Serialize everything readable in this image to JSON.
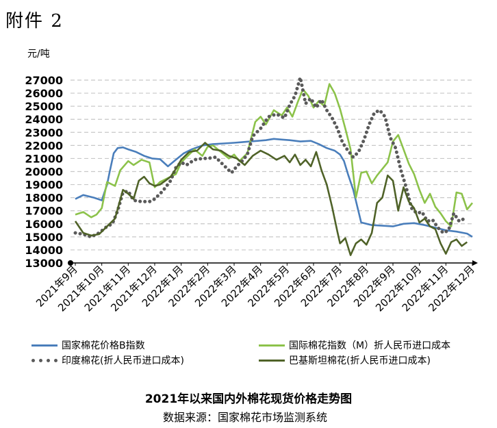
{
  "header": {
    "label": "附件 2"
  },
  "chart_data": {
    "type": "line",
    "title": "2021年以来国内外棉花现货价格走势图",
    "subtitle": "数据来源：国家棉花市场监测系统",
    "ylabel": "元/吨",
    "ylim": [
      13000,
      27000
    ],
    "yticks": [
      "13000",
      "14000",
      "15000",
      "16000",
      "17000",
      "18000",
      "19000",
      "20000",
      "21000",
      "22000",
      "23000",
      "24000",
      "25000",
      "26000",
      "27000"
    ],
    "categories": [
      "2021年9月",
      "2021年10月",
      "2021年11月",
      "2021年12月",
      "2022年1月",
      "2022年2月",
      "2022年3月",
      "2022年4月",
      "2022年5月",
      "2022年6月",
      "2022年7月",
      "2022年8月",
      "2022年9月",
      "2022年10月",
      "2022年11月",
      "2022年12月"
    ],
    "grid": "horizontal-dashed",
    "legend_position": "bottom",
    "series": [
      {
        "name": "国家棉花价格B指数",
        "color": "#4a7ebb",
        "style": "solid",
        "x": [
          0,
          0.3,
          0.7,
          1.0,
          1.2,
          1.3,
          1.45,
          1.6,
          1.8,
          2.0,
          2.3,
          2.6,
          2.9,
          3.2,
          3.5,
          3.8,
          4.1,
          4.4,
          4.8,
          5.2,
          5.6,
          6.0,
          6.3,
          6.6,
          6.9,
          7.2,
          7.5,
          7.8,
          8.1,
          8.5,
          8.9,
          9.2,
          9.5,
          9.8,
          10.0,
          10.15,
          10.3,
          10.5,
          10.8,
          11.2,
          11.6,
          12.0,
          12.4,
          12.8,
          13.2,
          13.6,
          14.0,
          14.4,
          14.8,
          15.0
        ],
        "values": [
          17900,
          18200,
          18000,
          17800,
          19000,
          20000,
          21400,
          21800,
          21850,
          21700,
          21500,
          21200,
          21000,
          20950,
          20400,
          20900,
          21400,
          21700,
          22000,
          22100,
          22150,
          22200,
          22250,
          22300,
          22350,
          22400,
          22500,
          22450,
          22400,
          22300,
          22350,
          22100,
          21800,
          21600,
          21300,
          20800,
          19800,
          18600,
          16100,
          15900,
          15850,
          15800,
          16000,
          16050,
          15900,
          15700,
          15500,
          15400,
          15250,
          15000
        ]
      },
      {
        "name": "国际棉花指数（M）折人民币进口成本",
        "color": "#8cc24a",
        "style": "solid",
        "x": [
          0,
          0.3,
          0.6,
          0.8,
          1.0,
          1.2,
          1.5,
          1.7,
          2.0,
          2.2,
          2.5,
          2.8,
          3.0,
          3.2,
          3.5,
          3.8,
          4.0,
          4.2,
          4.5,
          4.8,
          5.0,
          5.2,
          5.5,
          5.8,
          6.0,
          6.2,
          6.5,
          6.8,
          7.0,
          7.2,
          7.5,
          7.8,
          8.0,
          8.2,
          8.4,
          8.6,
          8.8,
          9.0,
          9.2,
          9.4,
          9.6,
          9.8,
          10.0,
          10.2,
          10.4,
          10.6,
          10.8,
          11.0,
          11.2,
          11.4,
          11.6,
          11.8,
          12.0,
          12.2,
          12.4,
          12.6,
          12.8,
          13.0,
          13.2,
          13.4,
          13.6,
          13.8,
          14.0,
          14.2,
          14.4,
          14.6,
          14.8,
          15.0
        ],
        "values": [
          16700,
          16900,
          16500,
          16700,
          17200,
          19200,
          18900,
          20100,
          20800,
          20500,
          20900,
          20700,
          18800,
          19200,
          19500,
          19800,
          20700,
          21100,
          21700,
          21200,
          21900,
          22000,
          21500,
          21000,
          21300,
          20800,
          21400,
          23800,
          24200,
          23600,
          24700,
          24300,
          24900,
          24200,
          25300,
          26300,
          25800,
          24900,
          25400,
          25000,
          26700,
          26000,
          24800,
          23300,
          21700,
          18000,
          19900,
          20000,
          19100,
          19700,
          20200,
          20700,
          22300,
          22800,
          21700,
          20600,
          19800,
          18600,
          17600,
          18300,
          17300,
          16800,
          16200,
          15800,
          18400,
          18300,
          17100,
          17600
        ]
      },
      {
        "name": "印度棉花(折人民币进口成本)",
        "color": "#5a5a5a",
        "style": "dotted",
        "x": [
          0,
          0.3,
          0.6,
          0.9,
          1.2,
          1.4,
          1.6,
          1.8,
          2.0,
          2.2,
          2.5,
          2.8,
          3.0,
          3.3,
          3.6,
          3.8,
          4.0,
          4.2,
          4.5,
          4.8,
          5.0,
          5.3,
          5.6,
          5.9,
          6.1,
          6.3,
          6.5,
          6.7,
          7.0,
          7.3,
          7.6,
          7.9,
          8.1,
          8.3,
          8.5,
          8.7,
          8.9,
          9.1,
          9.3,
          9.5,
          9.7,
          9.9,
          10.1,
          10.3,
          10.5,
          10.7,
          10.9,
          11.1,
          11.3,
          11.5,
          11.7,
          11.9,
          12.1,
          12.3,
          12.5,
          12.7,
          12.9,
          13.1,
          13.3,
          13.5,
          13.7,
          13.9,
          14.1,
          14.3,
          14.5,
          14.7
        ],
        "values": [
          15300,
          15200,
          15000,
          15300,
          15800,
          16000,
          17000,
          18400,
          18500,
          17800,
          17700,
          17700,
          17900,
          18500,
          19300,
          20300,
          20700,
          20500,
          20900,
          21000,
          21000,
          21100,
          20500,
          19900,
          20400,
          20800,
          21300,
          22700,
          23300,
          24200,
          24400,
          24100,
          25100,
          25800,
          27200,
          25200,
          25600,
          24900,
          25500,
          24700,
          24100,
          23300,
          22200,
          21600,
          21100,
          21500,
          22400,
          23600,
          24500,
          24700,
          24200,
          22600,
          21800,
          20100,
          18800,
          17200,
          16800,
          16900,
          16200,
          16300,
          15700,
          15300,
          15500,
          16800,
          16200,
          16400
        ]
      },
      {
        "name": "巴基斯坦棉花(折人民币进口成本)",
        "color": "#4f6228",
        "style": "solid",
        "x": [
          0,
          0.3,
          0.6,
          0.9,
          1.2,
          1.5,
          1.8,
          2.0,
          2.2,
          2.4,
          2.6,
          2.8,
          3.0,
          3.2,
          3.4,
          3.6,
          3.8,
          4.0,
          4.3,
          4.6,
          4.9,
          5.2,
          5.5,
          5.8,
          6.1,
          6.4,
          6.7,
          7.0,
          7.3,
          7.6,
          7.9,
          8.1,
          8.3,
          8.5,
          8.7,
          8.9,
          9.1,
          9.3,
          9.5,
          9.7,
          9.9,
          10.0,
          10.2,
          10.4,
          10.6,
          10.8,
          11.0,
          11.2,
          11.4,
          11.6,
          11.8,
          12.0,
          12.2,
          12.4,
          12.6,
          12.8,
          13.0,
          13.2,
          13.4,
          13.6,
          13.8,
          14.0,
          14.2,
          14.4,
          14.6,
          14.8
        ],
        "values": [
          16200,
          15300,
          15100,
          15200,
          15800,
          16400,
          18600,
          18300,
          17900,
          19300,
          19600,
          19100,
          18900,
          19000,
          19300,
          19600,
          20200,
          20900,
          21500,
          21600,
          22200,
          21700,
          21600,
          21200,
          21000,
          20500,
          21200,
          21600,
          21300,
          20900,
          21200,
          20700,
          21300,
          20500,
          20900,
          20400,
          21500,
          20100,
          19000,
          17300,
          15400,
          14500,
          14900,
          13600,
          14500,
          14800,
          14400,
          15300,
          17600,
          18000,
          19700,
          19300,
          17000,
          18800,
          17700,
          17200,
          16100,
          16400,
          15800,
          15600,
          14500,
          13700,
          14600,
          14800,
          14300,
          14600
        ]
      }
    ]
  }
}
